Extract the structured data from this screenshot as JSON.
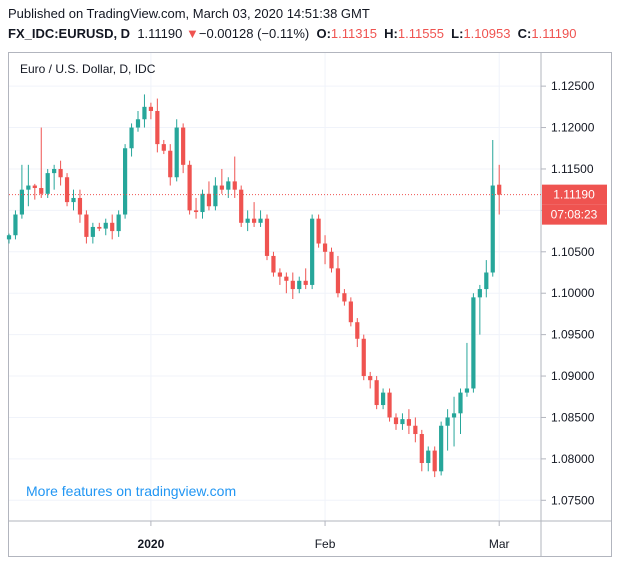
{
  "header": {
    "published": "Published on TradingView.com, March 03, 2020 14:51:38 GMT",
    "symbol": "FX_IDC:EURUSD, D",
    "last": "1.11190",
    "arrow": "▼",
    "change": "−0.00128 (−0.11%)",
    "o_label": "O:",
    "o_value": "1.11315",
    "h_label": "H:",
    "h_value": "1.11555",
    "l_label": "L:",
    "l_value": "1.10953",
    "c_label": "C:",
    "c_value": "1.11190"
  },
  "watermark": "More features on tradingview.com",
  "price_tag": "1.11190",
  "countdown_tag": "07:08:23",
  "colors": {
    "up": "#26a69a",
    "down": "#ef5350",
    "grid": "#f0f3fa",
    "axis": "#b2b5be",
    "text": "#131722",
    "link": "#2196f3"
  },
  "chart_data": {
    "type": "candlestick",
    "title": "Euro / U.S. Dollar, D, IDC",
    "ylim": [
      1.0725,
      1.129
    ],
    "yticks": [
      1.125,
      1.12,
      1.115,
      1.11,
      1.105,
      1.1,
      1.095,
      1.09,
      1.085,
      1.08,
      1.075
    ],
    "ytick_labels": [
      "1.12500",
      "1.12000",
      "1.11500",
      "1.11000",
      "1.10500",
      "1.10000",
      "1.09500",
      "1.09000",
      "1.08500",
      "1.08000",
      "1.07500"
    ],
    "xticks": [
      {
        "index": 22,
        "label": "2020"
      },
      {
        "index": 49,
        "label": "Feb"
      },
      {
        "index": 76,
        "label": "Mar"
      }
    ],
    "grid": true,
    "last_price": 1.1119,
    "candles": [
      {
        "o": 1.1065,
        "h": 1.1072,
        "l": 1.106,
        "c": 1.107
      },
      {
        "o": 1.107,
        "h": 1.11,
        "l": 1.1065,
        "c": 1.1095
      },
      {
        "o": 1.1095,
        "h": 1.1155,
        "l": 1.109,
        "c": 1.1125
      },
      {
        "o": 1.1125,
        "h": 1.1155,
        "l": 1.1105,
        "c": 1.113
      },
      {
        "o": 1.113,
        "h": 1.1132,
        "l": 1.1113,
        "c": 1.1127
      },
      {
        "o": 1.1127,
        "h": 1.12,
        "l": 1.1115,
        "c": 1.112
      },
      {
        "o": 1.112,
        "h": 1.115,
        "l": 1.1115,
        "c": 1.1145
      },
      {
        "o": 1.1145,
        "h": 1.1155,
        "l": 1.1125,
        "c": 1.115
      },
      {
        "o": 1.115,
        "h": 1.116,
        "l": 1.113,
        "c": 1.114
      },
      {
        "o": 1.114,
        "h": 1.1145,
        "l": 1.1105,
        "c": 1.111
      },
      {
        "o": 1.111,
        "h": 1.1125,
        "l": 1.11,
        "c": 1.1115
      },
      {
        "o": 1.1115,
        "h": 1.1125,
        "l": 1.1085,
        "c": 1.1095
      },
      {
        "o": 1.1095,
        "h": 1.11,
        "l": 1.106,
        "c": 1.1068
      },
      {
        "o": 1.1068,
        "h": 1.1085,
        "l": 1.106,
        "c": 1.108
      },
      {
        "o": 1.108,
        "h": 1.1085,
        "l": 1.1075,
        "c": 1.1078
      },
      {
        "o": 1.1078,
        "h": 1.109,
        "l": 1.107,
        "c": 1.1085
      },
      {
        "o": 1.1085,
        "h": 1.1095,
        "l": 1.1065,
        "c": 1.1075
      },
      {
        "o": 1.1075,
        "h": 1.11,
        "l": 1.1068,
        "c": 1.1095
      },
      {
        "o": 1.1095,
        "h": 1.118,
        "l": 1.109,
        "c": 1.1175
      },
      {
        "o": 1.1175,
        "h": 1.1205,
        "l": 1.1165,
        "c": 1.12
      },
      {
        "o": 1.12,
        "h": 1.122,
        "l": 1.1195,
        "c": 1.121
      },
      {
        "o": 1.121,
        "h": 1.124,
        "l": 1.12,
        "c": 1.1225
      },
      {
        "o": 1.1225,
        "h": 1.123,
        "l": 1.121,
        "c": 1.122
      },
      {
        "o": 1.122,
        "h": 1.1235,
        "l": 1.117,
        "c": 1.118
      },
      {
        "o": 1.118,
        "h": 1.1185,
        "l": 1.1168,
        "c": 1.1172
      },
      {
        "o": 1.1172,
        "h": 1.118,
        "l": 1.113,
        "c": 1.114
      },
      {
        "o": 1.114,
        "h": 1.121,
        "l": 1.1135,
        "c": 1.12
      },
      {
        "o": 1.12,
        "h": 1.1205,
        "l": 1.1145,
        "c": 1.1155
      },
      {
        "o": 1.1155,
        "h": 1.116,
        "l": 1.1095,
        "c": 1.11
      },
      {
        "o": 1.11,
        "h": 1.1115,
        "l": 1.109,
        "c": 1.1098
      },
      {
        "o": 1.1098,
        "h": 1.1125,
        "l": 1.109,
        "c": 1.112
      },
      {
        "o": 1.112,
        "h": 1.1135,
        "l": 1.11,
        "c": 1.1105
      },
      {
        "o": 1.1105,
        "h": 1.114,
        "l": 1.11,
        "c": 1.113
      },
      {
        "o": 1.113,
        "h": 1.115,
        "l": 1.112,
        "c": 1.1125
      },
      {
        "o": 1.1125,
        "h": 1.114,
        "l": 1.1115,
        "c": 1.1135
      },
      {
        "o": 1.1135,
        "h": 1.1165,
        "l": 1.1115,
        "c": 1.1125
      },
      {
        "o": 1.1125,
        "h": 1.113,
        "l": 1.108,
        "c": 1.1085
      },
      {
        "o": 1.1085,
        "h": 1.11,
        "l": 1.1075,
        "c": 1.109
      },
      {
        "o": 1.109,
        "h": 1.111,
        "l": 1.108,
        "c": 1.1085
      },
      {
        "o": 1.1085,
        "h": 1.11,
        "l": 1.108,
        "c": 1.109
      },
      {
        "o": 1.109,
        "h": 1.1095,
        "l": 1.104,
        "c": 1.1045
      },
      {
        "o": 1.1045,
        "h": 1.105,
        "l": 1.102,
        "c": 1.1025
      },
      {
        "o": 1.1025,
        "h": 1.103,
        "l": 1.101,
        "c": 1.102
      },
      {
        "o": 1.102,
        "h": 1.1025,
        "l": 1.1,
        "c": 1.1015
      },
      {
        "o": 1.1015,
        "h": 1.1025,
        "l": 1.0993,
        "c": 1.1005
      },
      {
        "o": 1.1005,
        "h": 1.102,
        "l": 1.1,
        "c": 1.1015
      },
      {
        "o": 1.1015,
        "h": 1.103,
        "l": 1.1005,
        "c": 1.101
      },
      {
        "o": 1.101,
        "h": 1.1095,
        "l": 1.1005,
        "c": 1.109
      },
      {
        "o": 1.109,
        "h": 1.1095,
        "l": 1.1055,
        "c": 1.106
      },
      {
        "o": 1.106,
        "h": 1.107,
        "l": 1.1035,
        "c": 1.105
      },
      {
        "o": 1.105,
        "h": 1.1055,
        "l": 1.1025,
        "c": 1.103
      },
      {
        "o": 1.103,
        "h": 1.1045,
        "l": 1.0995,
        "c": 1.1
      },
      {
        "o": 1.1,
        "h": 1.1005,
        "l": 1.0985,
        "c": 1.099
      },
      {
        "o": 1.099,
        "h": 1.0995,
        "l": 1.096,
        "c": 1.0965
      },
      {
        "o": 1.0965,
        "h": 1.097,
        "l": 1.0935,
        "c": 1.0945
      },
      {
        "o": 1.0945,
        "h": 1.095,
        "l": 1.0895,
        "c": 1.09
      },
      {
        "o": 1.09,
        "h": 1.0905,
        "l": 1.0885,
        "c": 1.0895
      },
      {
        "o": 1.0895,
        "h": 1.09,
        "l": 1.086,
        "c": 1.0865
      },
      {
        "o": 1.0865,
        "h": 1.0885,
        "l": 1.086,
        "c": 1.088
      },
      {
        "o": 1.088,
        "h": 1.0885,
        "l": 1.0845,
        "c": 1.085
      },
      {
        "o": 1.085,
        "h": 1.0855,
        "l": 1.0835,
        "c": 1.0842
      },
      {
        "o": 1.0842,
        "h": 1.0855,
        "l": 1.0835,
        "c": 1.0848
      },
      {
        "o": 1.0848,
        "h": 1.086,
        "l": 1.083,
        "c": 1.084
      },
      {
        "o": 1.084,
        "h": 1.085,
        "l": 1.082,
        "c": 1.083
      },
      {
        "o": 1.083,
        "h": 1.0835,
        "l": 1.0785,
        "c": 1.0795
      },
      {
        "o": 1.0795,
        "h": 1.0815,
        "l": 1.0785,
        "c": 1.081
      },
      {
        "o": 1.081,
        "h": 1.0815,
        "l": 1.0778,
        "c": 1.0785
      },
      {
        "o": 1.0785,
        "h": 1.0845,
        "l": 1.078,
        "c": 1.084
      },
      {
        "o": 1.084,
        "h": 1.086,
        "l": 1.081,
        "c": 1.085
      },
      {
        "o": 1.085,
        "h": 1.0875,
        "l": 1.0815,
        "c": 1.0855
      },
      {
        "o": 1.0855,
        "h": 1.0885,
        "l": 1.083,
        "c": 1.088
      },
      {
        "o": 1.088,
        "h": 1.094,
        "l": 1.0875,
        "c": 1.0885
      },
      {
        "o": 1.0885,
        "h": 1.1,
        "l": 1.088,
        "c": 1.0995
      },
      {
        "o": 1.0995,
        "h": 1.101,
        "l": 1.095,
        "c": 1.1005
      },
      {
        "o": 1.1005,
        "h": 1.104,
        "l": 1.0995,
        "c": 1.1025
      },
      {
        "o": 1.1025,
        "h": 1.1185,
        "l": 1.102,
        "c": 1.113
      },
      {
        "o": 1.1131,
        "h": 1.1155,
        "l": 1.1095,
        "c": 1.1119
      }
    ]
  }
}
